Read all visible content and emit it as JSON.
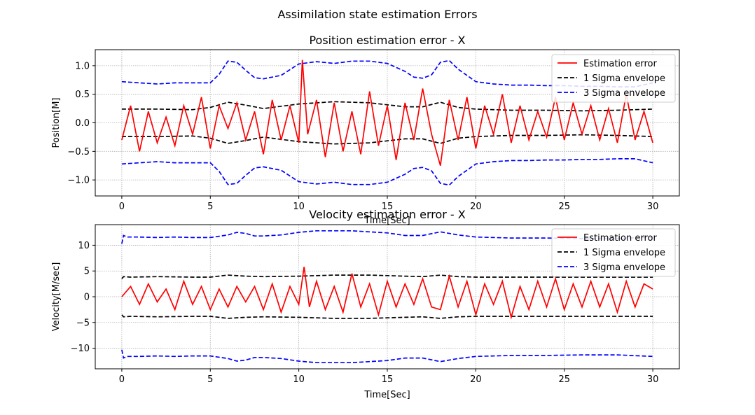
{
  "figure": {
    "suptitle": "Assimilation state estimation Errors"
  },
  "chart_data": [
    {
      "type": "line",
      "title": "Position estimation error - X",
      "xlabel": "Time[Sec]",
      "ylabel": "Position[M]",
      "xlim": [
        -1.5,
        31.5
      ],
      "ylim": [
        -1.28,
        1.28
      ],
      "xticks": [
        0,
        5,
        10,
        15,
        20,
        25,
        30
      ],
      "xtick_labels": [
        "0",
        "5",
        "10",
        "15",
        "20",
        "25",
        "30"
      ],
      "yticks": [
        -1.0,
        -0.5,
        0.0,
        0.5,
        1.0
      ],
      "ytick_labels": [
        "−1.0",
        "−0.5",
        "0.0",
        "0.5",
        "1.0"
      ],
      "grid": true,
      "legend_position": "top-right",
      "legend": [
        "Estimation error",
        "1 Sigma envelope",
        "3 Sigma envelope"
      ],
      "series": [
        {
          "name": "Estimation error",
          "color": "#ff0000",
          "style": "solid",
          "x": [
            0,
            0.5,
            1,
            1.5,
            2,
            2.5,
            3,
            3.5,
            4,
            4.5,
            5,
            5.5,
            6,
            6.5,
            7,
            7.5,
            8,
            8.5,
            9,
            9.5,
            10,
            10.2,
            10.5,
            11,
            11.5,
            12,
            12.5,
            13,
            13.5,
            14,
            14.5,
            15,
            15.5,
            16,
            16.5,
            17,
            17.5,
            18,
            18.5,
            19,
            19.5,
            20,
            20.5,
            21,
            21.5,
            22,
            22.5,
            23,
            23.5,
            24,
            24.5,
            25,
            25.5,
            26,
            26.5,
            27,
            27.5,
            28,
            28.5,
            29,
            29.5,
            30
          ],
          "y": [
            -0.3,
            0.3,
            -0.5,
            0.2,
            -0.35,
            0.1,
            -0.4,
            0.3,
            -0.2,
            0.45,
            -0.45,
            0.3,
            -0.1,
            0.35,
            -0.3,
            0.2,
            -0.55,
            0.4,
            -0.3,
            0.3,
            -0.35,
            1.1,
            -0.2,
            0.4,
            -0.6,
            0.35,
            -0.5,
            0.2,
            -0.55,
            0.55,
            -0.4,
            0.3,
            -0.65,
            0.35,
            -0.3,
            0.6,
            -0.2,
            -0.75,
            0.4,
            -0.3,
            0.45,
            -0.45,
            0.3,
            -0.2,
            0.5,
            -0.35,
            0.3,
            -0.3,
            0.2,
            -0.25,
            0.45,
            -0.3,
            0.35,
            -0.2,
            0.3,
            -0.3,
            0.25,
            -0.35,
            0.5,
            -0.3,
            0.2,
            -0.35
          ]
        },
        {
          "name": "1 Sigma envelope",
          "color": "#000000",
          "style": "dashed",
          "x": [
            0,
            2,
            4,
            5,
            6,
            7,
            8,
            10,
            12,
            14,
            16,
            17,
            18,
            19,
            20,
            22,
            24,
            26,
            28,
            30
          ],
          "y": [
            0.24,
            0.24,
            0.23,
            0.27,
            0.36,
            0.31,
            0.25,
            0.33,
            0.37,
            0.35,
            0.28,
            0.28,
            0.36,
            0.27,
            0.24,
            0.22,
            0.22,
            0.21,
            0.22,
            0.24
          ],
          "mirror": true
        },
        {
          "name": "3 Sigma envelope",
          "color": "#0000ff",
          "style": "dashed",
          "x": [
            0,
            1,
            2,
            3,
            4,
            5,
            5.5,
            6,
            6.5,
            7,
            7.5,
            8,
            9,
            10,
            11,
            12,
            13,
            14,
            15,
            16,
            16.5,
            17,
            17.5,
            18,
            18.5,
            19,
            20,
            21,
            22,
            23,
            24,
            25,
            26,
            27,
            28,
            29,
            30
          ],
          "y": [
            0.72,
            0.7,
            0.68,
            0.7,
            0.7,
            0.7,
            0.85,
            1.08,
            1.06,
            0.92,
            0.79,
            0.77,
            0.83,
            1.03,
            1.07,
            1.04,
            1.08,
            1.08,
            1.04,
            0.9,
            0.8,
            0.78,
            0.84,
            1.06,
            1.09,
            0.94,
            0.72,
            0.68,
            0.66,
            0.66,
            0.65,
            0.65,
            0.64,
            0.64,
            0.63,
            0.63,
            0.7
          ],
          "mirror": true
        }
      ]
    },
    {
      "type": "line",
      "title": "Velocity estimation error - X",
      "xlabel": "Time[Sec]",
      "ylabel": "Velocity[M/sec]",
      "xlim": [
        -1.5,
        31.5
      ],
      "ylim": [
        -14,
        14
      ],
      "xticks": [
        0,
        5,
        10,
        15,
        20,
        25,
        30
      ],
      "xtick_labels": [
        "0",
        "5",
        "10",
        "15",
        "20",
        "25",
        "30"
      ],
      "yticks": [
        -10,
        -5,
        0,
        5,
        10
      ],
      "ytick_labels": [
        "−10",
        "−5",
        "0",
        "5",
        "10"
      ],
      "grid": true,
      "legend_position": "top-right",
      "legend": [
        "Estimation error",
        "1 Sigma envelope",
        "3 Sigma envelope"
      ],
      "series": [
        {
          "name": "Estimation error",
          "color": "#ff0000",
          "style": "solid",
          "x": [
            0,
            0.5,
            1,
            1.5,
            2,
            2.5,
            3,
            3.5,
            4,
            4.5,
            5,
            5.5,
            6,
            6.5,
            7,
            7.5,
            8,
            8.5,
            9,
            9.5,
            10,
            10.3,
            10.6,
            11,
            11.5,
            12,
            12.5,
            13,
            13.5,
            14,
            14.5,
            15,
            15.5,
            16,
            16.5,
            17,
            17.5,
            18,
            18.5,
            19,
            19.5,
            20,
            20.5,
            21,
            21.5,
            22,
            22.5,
            23,
            23.5,
            24,
            24.5,
            25,
            25.5,
            26,
            26.5,
            27,
            27.5,
            28,
            28.5,
            29,
            29.5,
            30
          ],
          "y": [
            0,
            2,
            -1.5,
            2.5,
            -1,
            1.5,
            -2.5,
            3,
            -1.5,
            2,
            -2.5,
            1.5,
            -2,
            2,
            -1,
            2,
            -2.5,
            2.5,
            -3,
            2,
            -1.5,
            5.8,
            -2,
            3,
            -2.5,
            2,
            -3,
            4.5,
            -2,
            2.5,
            -3.5,
            3,
            -2,
            2.5,
            -1.5,
            3.5,
            -2,
            -2.5,
            4,
            -2,
            3,
            -3.5,
            2.5,
            -1.5,
            3,
            -4,
            2,
            -2.5,
            3,
            -2,
            3.5,
            -2.5,
            2.5,
            -2,
            3,
            -2,
            2.5,
            -3,
            3,
            -2,
            2.5,
            1.5
          ]
        },
        {
          "name": "1 Sigma envelope",
          "color": "#000000",
          "style": "dashed",
          "x": [
            0,
            0.1,
            0.5,
            2,
            4,
            5,
            6,
            7,
            8,
            10,
            12,
            14,
            16,
            17,
            18,
            19,
            20,
            22,
            24,
            26,
            28,
            30
          ],
          "y": [
            3.5,
            3.9,
            3.8,
            3.9,
            3.8,
            3.8,
            4.2,
            4.0,
            3.9,
            4.0,
            4.2,
            4.2,
            4.0,
            3.9,
            4.2,
            3.9,
            3.8,
            3.8,
            3.8,
            3.8,
            3.8,
            3.8
          ],
          "mirror": true
        },
        {
          "name": "3 Sigma envelope",
          "color": "#0000ff",
          "style": "dashed",
          "x": [
            0,
            0.1,
            0.3,
            1,
            2,
            3,
            4,
            5,
            6,
            6.5,
            7,
            7.5,
            8,
            9,
            10,
            11,
            12,
            13,
            14,
            15,
            16,
            17,
            18,
            19,
            20,
            22,
            24,
            26,
            28,
            30
          ],
          "y": [
            10.3,
            11.9,
            11.6,
            11.6,
            11.5,
            11.6,
            11.5,
            11.5,
            12.0,
            12.5,
            12.3,
            11.8,
            11.8,
            12.0,
            12.5,
            12.8,
            12.8,
            12.8,
            12.6,
            12.4,
            11.9,
            11.9,
            12.6,
            12.0,
            11.6,
            11.4,
            11.4,
            11.3,
            11.3,
            11.6
          ],
          "mirror": true
        }
      ]
    }
  ]
}
